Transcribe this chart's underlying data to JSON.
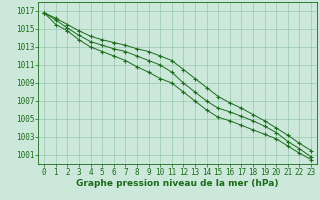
{
  "x": [
    0,
    1,
    2,
    3,
    4,
    5,
    6,
    7,
    8,
    9,
    10,
    11,
    12,
    13,
    14,
    15,
    16,
    17,
    18,
    19,
    20,
    21,
    22,
    23
  ],
  "line1": [
    1016.8,
    1016.2,
    1015.5,
    1014.8,
    1014.2,
    1013.8,
    1013.5,
    1013.2,
    1012.8,
    1012.5,
    1012.0,
    1011.5,
    1010.5,
    1009.5,
    1008.5,
    1007.5,
    1006.8,
    1006.2,
    1005.5,
    1004.8,
    1004.0,
    1003.2,
    1002.3,
    1001.5
  ],
  "line2": [
    1016.8,
    1016.0,
    1015.1,
    1014.3,
    1013.6,
    1013.2,
    1012.8,
    1012.5,
    1012.0,
    1011.5,
    1011.0,
    1010.2,
    1009.0,
    1008.0,
    1007.0,
    1006.2,
    1005.8,
    1005.3,
    1004.8,
    1004.2,
    1003.5,
    1002.5,
    1001.7,
    1000.8
  ],
  "line3": [
    1016.8,
    1015.5,
    1014.8,
    1013.8,
    1013.0,
    1012.5,
    1012.0,
    1011.5,
    1010.8,
    1010.2,
    1009.5,
    1009.0,
    1008.0,
    1007.0,
    1006.0,
    1005.2,
    1004.8,
    1004.3,
    1003.8,
    1003.3,
    1002.8,
    1002.0,
    1001.2,
    1000.5
  ],
  "line_color": "#1a6b1a",
  "bg_color": "#cce8da",
  "grid_color": "#99c8b0",
  "xlabel": "Graphe pression niveau de la mer (hPa)",
  "ylim": [
    1000.0,
    1018.0
  ],
  "yticks": [
    1001,
    1003,
    1005,
    1007,
    1009,
    1011,
    1013,
    1015,
    1017
  ],
  "xticks": [
    0,
    1,
    2,
    3,
    4,
    5,
    6,
    7,
    8,
    9,
    10,
    11,
    12,
    13,
    14,
    15,
    16,
    17,
    18,
    19,
    20,
    21,
    22,
    23
  ],
  "marker": "+",
  "markersize": 3,
  "linewidth": 0.7,
  "tick_fontsize": 5.5,
  "xlabel_fontsize": 6.5
}
